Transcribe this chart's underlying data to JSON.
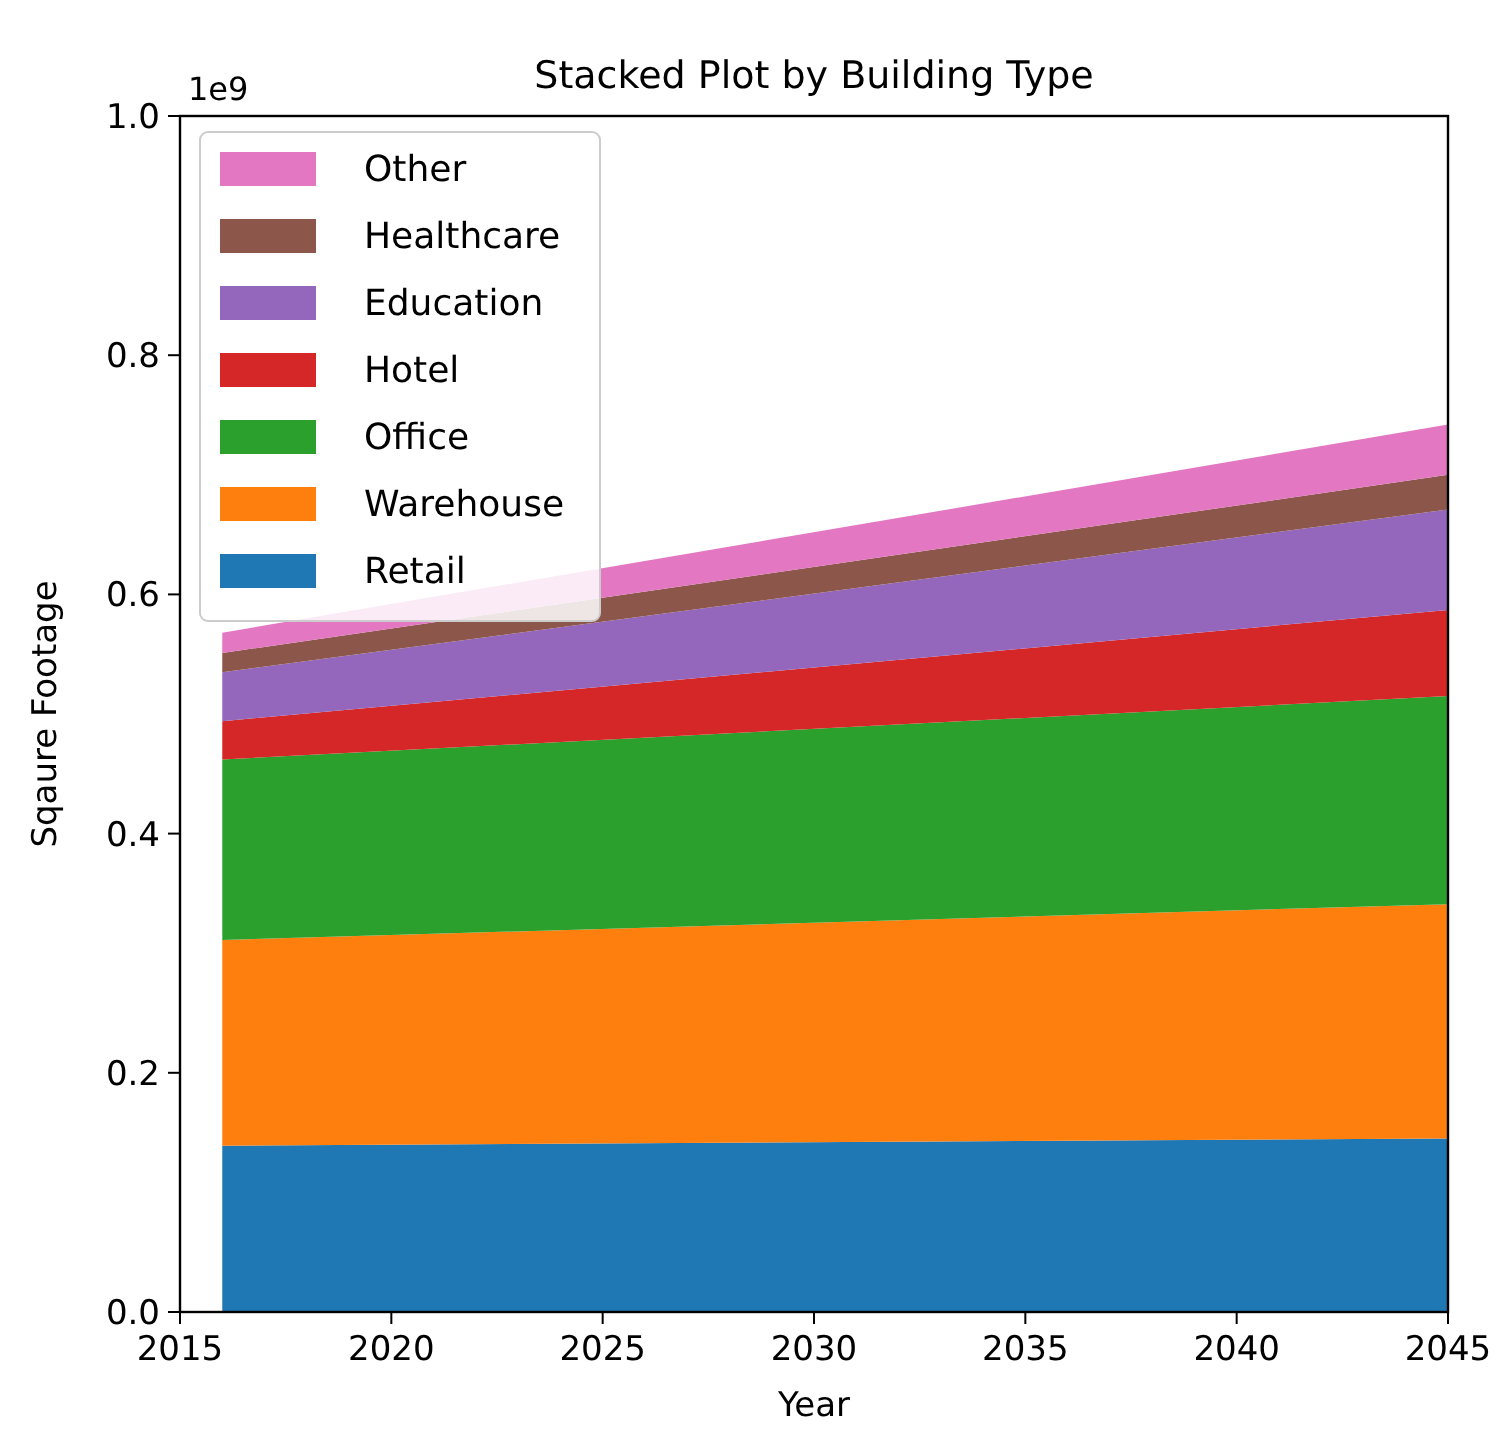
{
  "chart_data": {
    "type": "area",
    "stacked": true,
    "title": "Stacked Plot by Building Type",
    "xlabel": "Year",
    "ylabel": "Sqaure Footage",
    "annotations": [
      "1e9"
    ],
    "x": [
      2016,
      2045
    ],
    "series": [
      {
        "name": "Retail",
        "color": "#1f77b4",
        "values": [
          0.139,
          0.145
        ]
      },
      {
        "name": "Warehouse",
        "color": "#ff7f0e",
        "values": [
          0.172,
          0.196
        ]
      },
      {
        "name": "Office",
        "color": "#2ca02c",
        "values": [
          0.151,
          0.174
        ]
      },
      {
        "name": "Hotel",
        "color": "#d62728",
        "values": [
          0.032,
          0.072
        ]
      },
      {
        "name": "Education",
        "color": "#9467bd",
        "values": [
          0.041,
          0.084
        ]
      },
      {
        "name": "Healthcare",
        "color": "#8c564b",
        "values": [
          0.016,
          0.029
        ]
      },
      {
        "name": "Other",
        "color": "#e377c2",
        "values": [
          0.017,
          0.042
        ]
      }
    ],
    "xlim": [
      2015,
      2045
    ],
    "xticks": [
      2015,
      2020,
      2025,
      2030,
      2035,
      2040,
      2045
    ],
    "ylim": [
      0,
      1
    ],
    "yticks": [
      {
        "value": 0,
        "label": "0.0"
      },
      {
        "value": 0.2,
        "label": "0.2"
      },
      {
        "value": 0.4,
        "label": "0.4"
      },
      {
        "value": 0.6,
        "label": "0.6"
      },
      {
        "value": 0.8,
        "label": "0.8"
      },
      {
        "value": 1,
        "label": "1.0"
      }
    ],
    "legend": "top left",
    "grid": false
  }
}
